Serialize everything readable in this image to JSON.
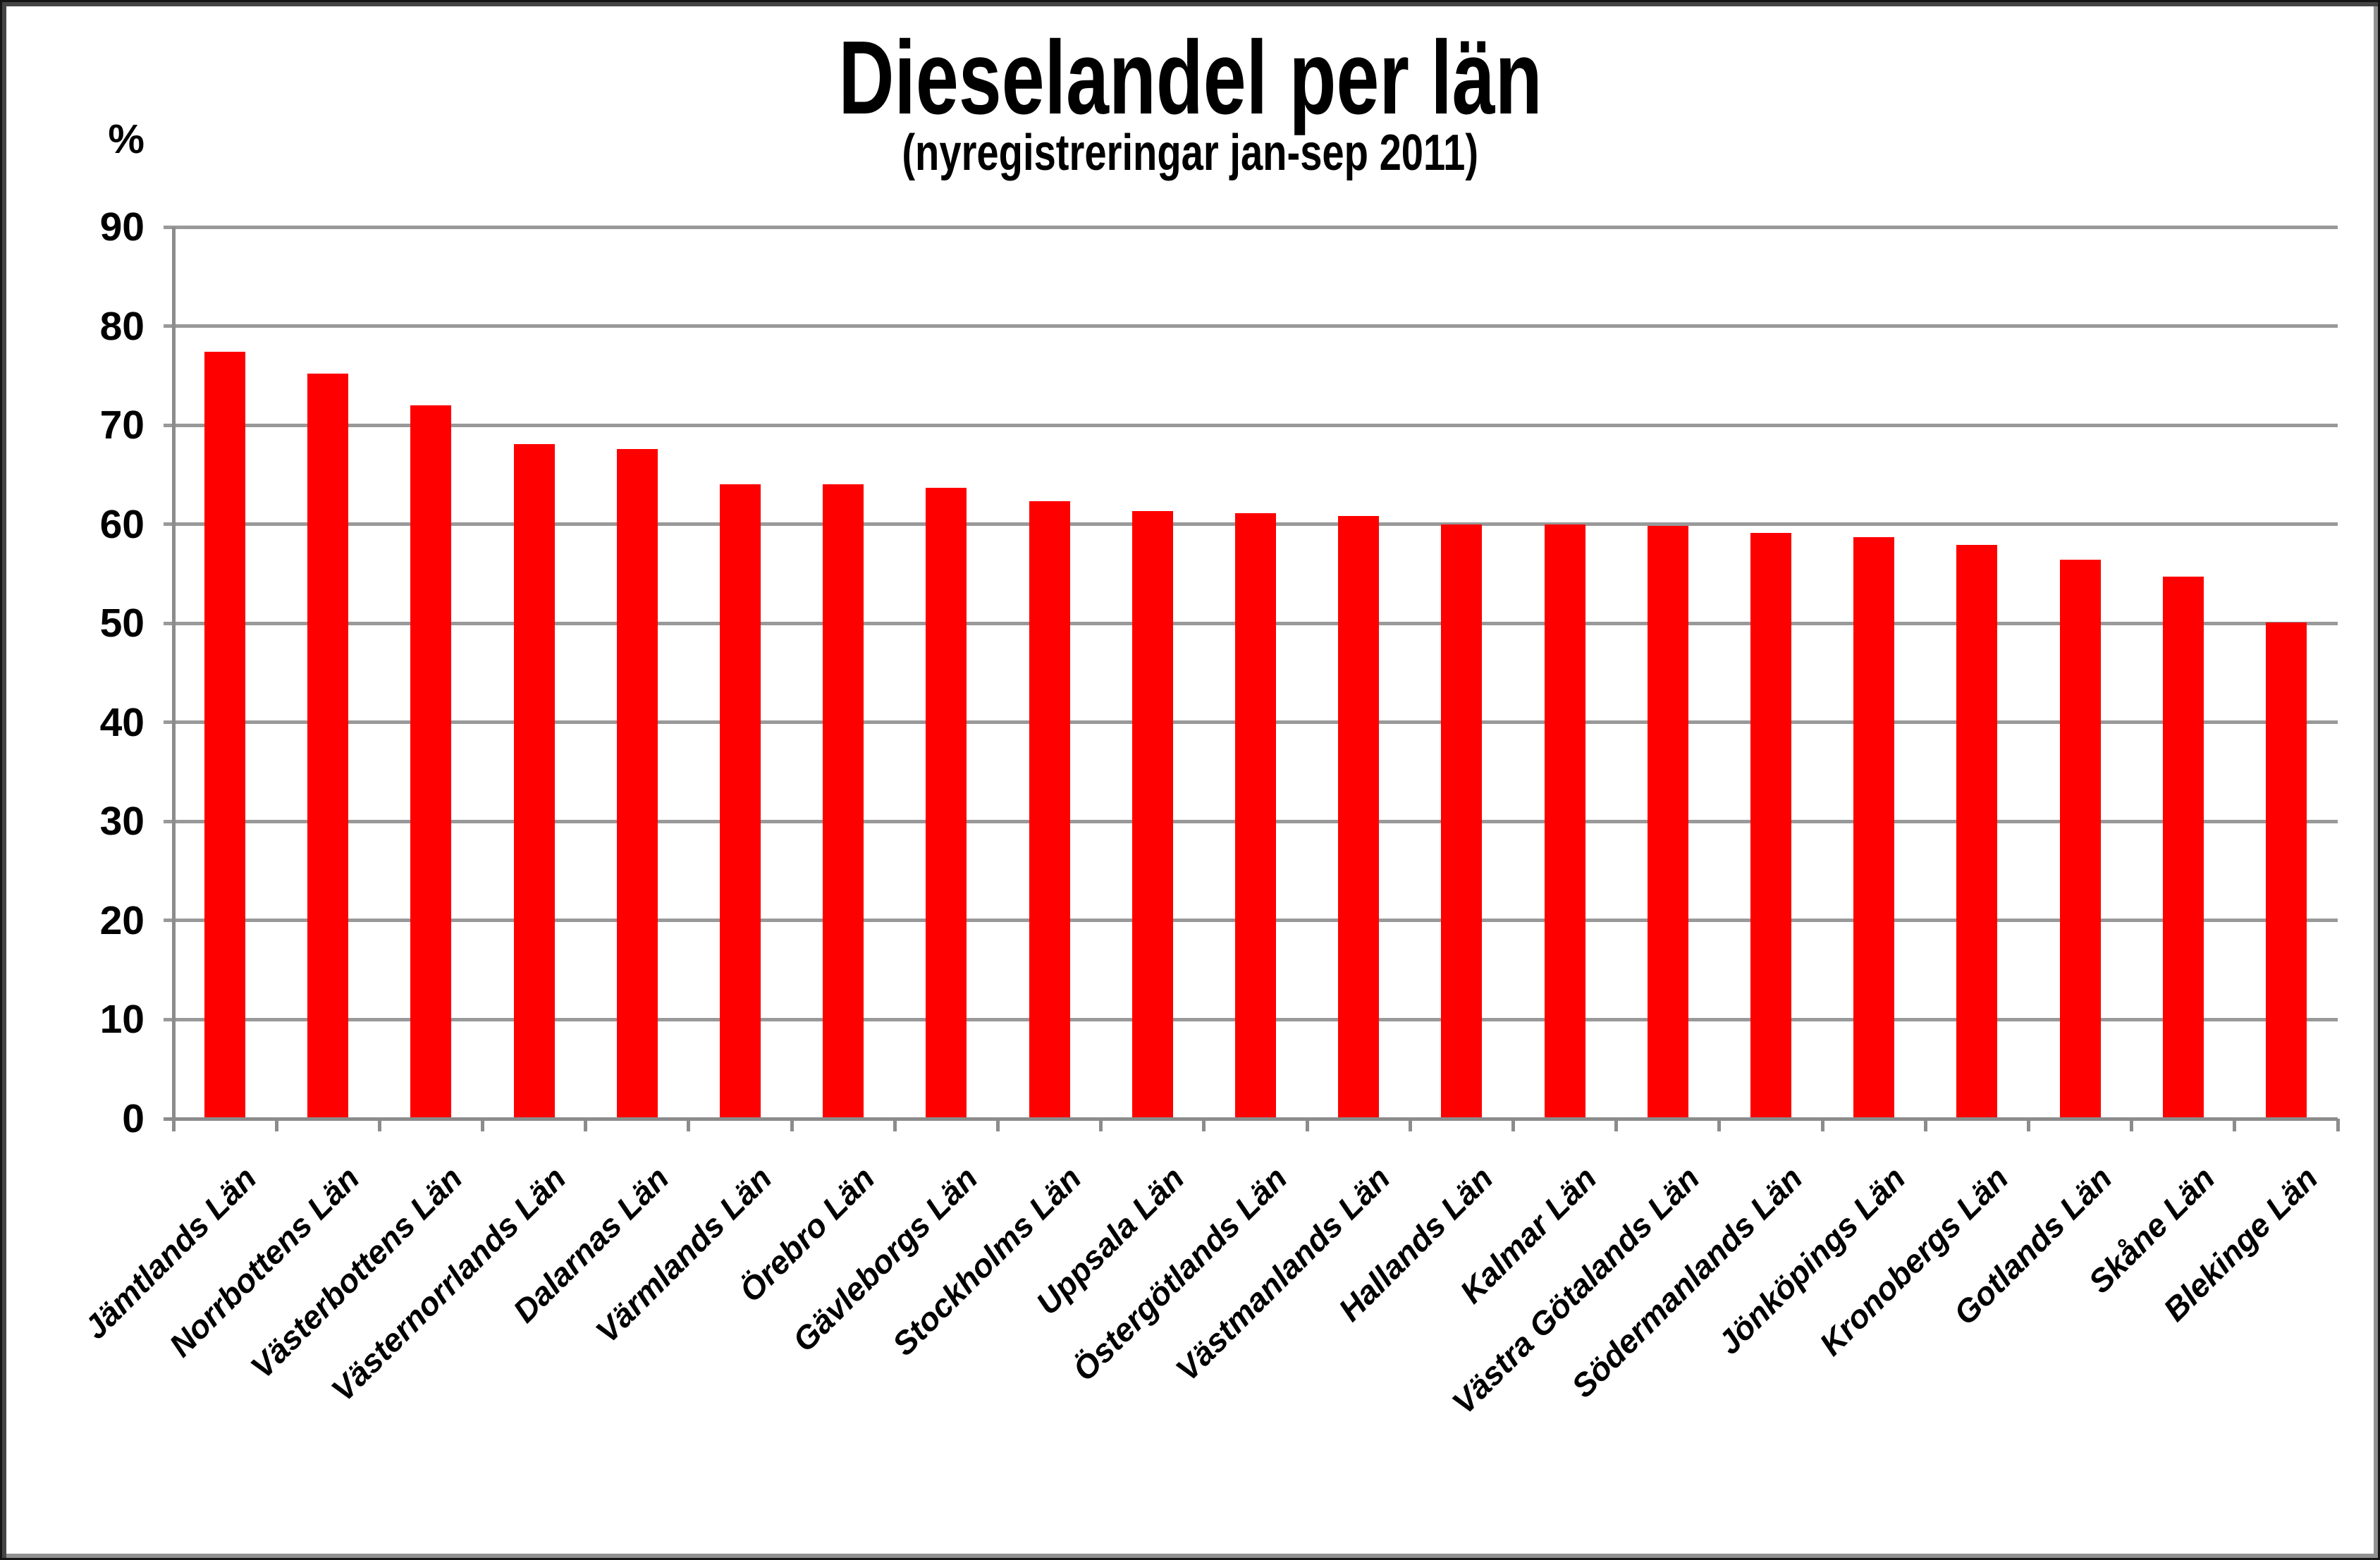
{
  "chart_data": {
    "type": "bar",
    "title": "Dieselandel per län",
    "subtitle": "(nyregistreringar jan-sep 2011)",
    "y_axis_unit_label": "%",
    "categories": [
      "Jämtlands Län",
      "Norrbottens Län",
      "Västerbottens Län",
      "Västernorrlands Län",
      "Dalarnas Län",
      "Värmlands Län",
      "Örebro Län",
      "Gävleborgs Län",
      "Stockholms Län",
      "Uppsala Län",
      "Östergötlands Län",
      "Västmanlands Län",
      "Hallands Län",
      "Kalmar Län",
      "Västra Götalands Län",
      "Södermanlands Län",
      "Jönköpings Län",
      "Kronobergs Län",
      "Gotlands Län",
      "Skåne Län",
      "Blekinge Län"
    ],
    "values": [
      77.4,
      75.2,
      72.0,
      68.1,
      67.6,
      64.0,
      64.0,
      63.7,
      62.3,
      61.3,
      61.1,
      60.8,
      60.0,
      60.0,
      59.8,
      59.1,
      58.7,
      57.9,
      56.4,
      54.7,
      50.1
    ],
    "ylim": [
      0,
      90
    ],
    "ytick_interval": 10,
    "grid": true,
    "legend_position": "none",
    "colors": {
      "bar": "#FF0000",
      "gridline": "#999999",
      "axis": "#8C8C8C",
      "text": "#000000",
      "background": "#FFFFFF"
    }
  }
}
